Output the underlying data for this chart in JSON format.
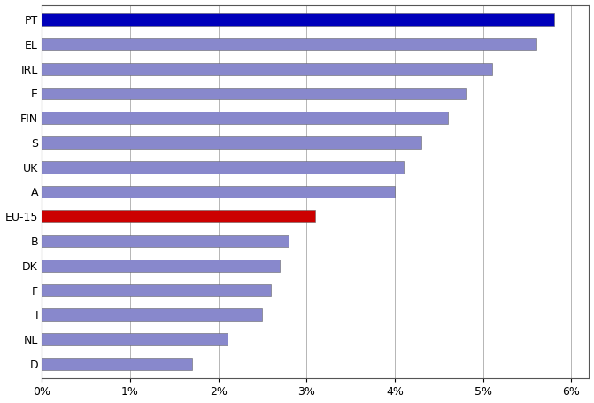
{
  "categories": [
    "PT",
    "EL",
    "IRL",
    "E",
    "FIN",
    "S",
    "UK",
    "A",
    "EU-15",
    "B",
    "DK",
    "F",
    "I",
    "NL",
    "D"
  ],
  "values": [
    0.058,
    0.056,
    0.051,
    0.048,
    0.046,
    0.043,
    0.041,
    0.04,
    0.031,
    0.028,
    0.027,
    0.026,
    0.025,
    0.021,
    0.017
  ],
  "bar_colors": [
    "#0000bb",
    "#8888cc",
    "#8888cc",
    "#8888cc",
    "#8888cc",
    "#8888cc",
    "#8888cc",
    "#8888cc",
    "#cc0000",
    "#8888cc",
    "#8888cc",
    "#8888cc",
    "#8888cc",
    "#8888cc",
    "#8888cc"
  ],
  "xlim": [
    0,
    0.062
  ],
  "xticks": [
    0,
    0.01,
    0.02,
    0.03,
    0.04,
    0.05,
    0.06
  ],
  "xtick_labels": [
    "0%",
    "1%",
    "2%",
    "3%",
    "4%",
    "5%",
    "6%"
  ],
  "background_color": "#ffffff",
  "bar_height": 0.5,
  "grid_color": "#999999",
  "edge_color": "#666666",
  "label_fontsize": 9,
  "tick_fontsize": 9
}
